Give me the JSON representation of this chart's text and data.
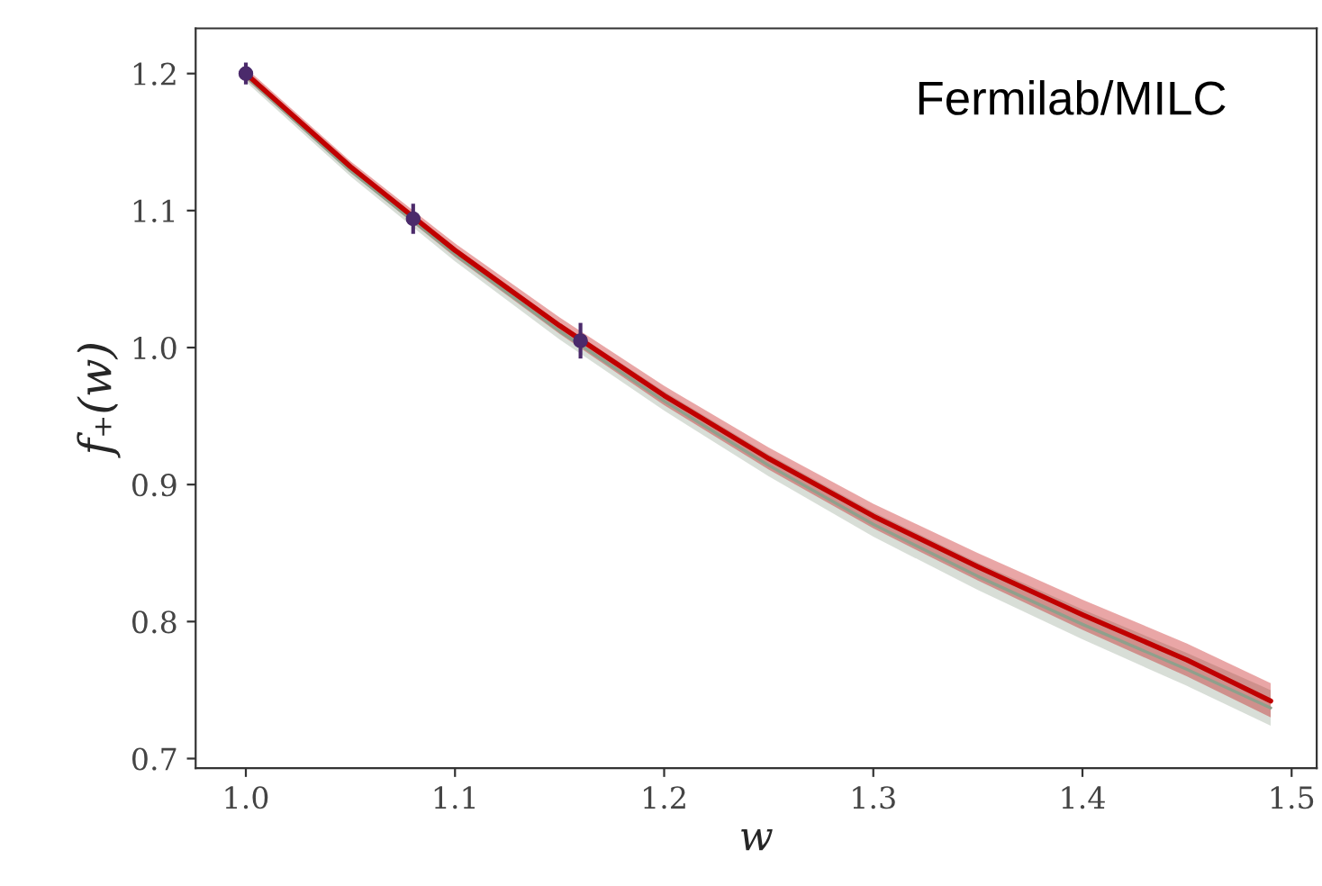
{
  "chart_data": {
    "type": "line",
    "xlabel": "w",
    "ylabel": "f₊(w)",
    "annotations": [
      "Fermilab/MILC"
    ],
    "xlim": [
      0.976,
      1.512
    ],
    "ylim": [
      0.693,
      1.233
    ],
    "xticks": [
      {
        "value": 1.0,
        "label": "1.0"
      },
      1.1,
      1.2,
      1.3,
      1.4,
      {
        "value": 1.5,
        "label": "1.5"
      }
    ],
    "yticks": [
      0.7,
      0.8,
      0.9,
      {
        "value": 1.0,
        "label": "1.0"
      },
      1.1,
      1.2
    ],
    "grid": false,
    "legend": false,
    "series": [
      {
        "color": "#8fa08c",
        "x": [
          1.0,
          1.05,
          1.1,
          1.15,
          1.2,
          1.25,
          1.3,
          1.35,
          1.4,
          1.45,
          1.49
        ],
        "values": [
          1.198,
          1.129,
          1.068,
          1.012,
          0.961,
          0.914,
          0.871,
          0.833,
          0.798,
          0.765,
          0.737
        ],
        "lower": [
          1.194,
          1.125,
          1.063,
          1.006,
          0.954,
          0.906,
          0.862,
          0.823,
          0.787,
          0.753,
          0.724
        ],
        "upper": [
          1.202,
          1.133,
          1.073,
          1.018,
          0.968,
          0.922,
          0.88,
          0.843,
          0.809,
          0.777,
          0.75
        ]
      },
      {
        "color": "#c00000",
        "x": [
          1.0,
          1.05,
          1.1,
          1.15,
          1.2,
          1.25,
          1.3,
          1.35,
          1.4,
          1.45,
          1.49
        ],
        "values": [
          1.2,
          1.132,
          1.071,
          1.016,
          0.965,
          0.919,
          0.877,
          0.84,
          0.805,
          0.772,
          0.742
        ],
        "lower": [
          1.196,
          1.128,
          1.066,
          1.01,
          0.958,
          0.911,
          0.868,
          0.83,
          0.794,
          0.76,
          0.73
        ],
        "upper": [
          1.204,
          1.136,
          1.076,
          1.022,
          0.972,
          0.927,
          0.886,
          0.85,
          0.816,
          0.784,
          0.755
        ]
      },
      {
        "type": "scatter",
        "color": "#4b2a6b",
        "marker": "circle",
        "x": [
          1.0,
          1.08,
          1.16
        ],
        "values": [
          1.2,
          1.094,
          1.005
        ],
        "errors": [
          0.008,
          0.011,
          0.013
        ]
      }
    ]
  }
}
